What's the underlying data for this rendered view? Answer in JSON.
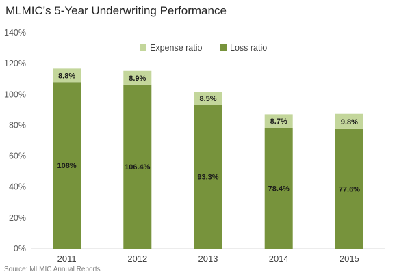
{
  "chart_data": {
    "type": "bar",
    "stacked": true,
    "title": "MLMIC's 5-Year Underwriting Performance",
    "source": "Source: MLMIC Annual Reports",
    "categories": [
      "2011",
      "2012",
      "2013",
      "2014",
      "2015"
    ],
    "series": [
      {
        "name": "Loss ratio",
        "color": "#77933c",
        "values": [
          108,
          106.4,
          93.3,
          78.4,
          77.6
        ],
        "labels": [
          "108%",
          "106.4%",
          "93.3%",
          "78.4%",
          "77.6%"
        ]
      },
      {
        "name": "Expense ratio",
        "color": "#c3d69b",
        "values": [
          8.8,
          8.9,
          8.5,
          8.7,
          9.8
        ],
        "labels": [
          "8.8%",
          "8.9%",
          "8.5%",
          "8.7%",
          "9.8%"
        ]
      }
    ],
    "legend_order": [
      "Expense ratio",
      "Loss ratio"
    ],
    "ylim": [
      0,
      140
    ],
    "yticks": [
      0,
      20,
      40,
      60,
      80,
      100,
      120,
      140
    ],
    "ytick_labels": [
      "0%",
      "20%",
      "40%",
      "60%",
      "80%",
      "100%",
      "120%",
      "140%"
    ],
    "legend_position": "top-right",
    "grid": false
  }
}
